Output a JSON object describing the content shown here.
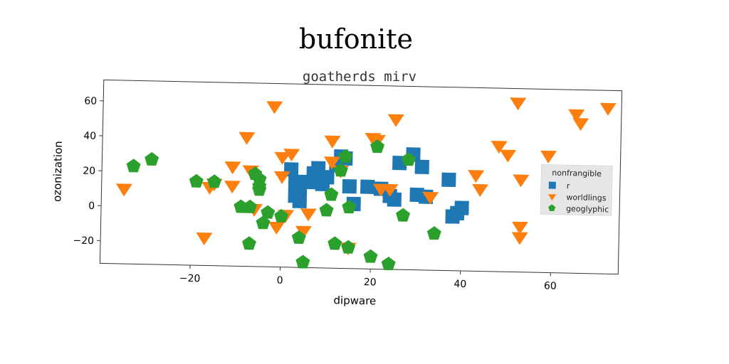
{
  "chart_data": {
    "type": "scatter",
    "title": "bufonite",
    "subtitle": "goatherds mirv",
    "xlabel": "dipware",
    "ylabel": "ozonization",
    "xlim": [
      -40,
      75
    ],
    "ylim": [
      -33,
      72
    ],
    "xticks": [
      -20,
      0,
      20,
      40,
      60
    ],
    "yticks": [
      -20,
      0,
      20,
      40,
      60
    ],
    "grid": false,
    "legend": {
      "title": "nonfrangible",
      "placement": "right"
    },
    "series": [
      {
        "name": "r",
        "marker": "square",
        "color": "#1f77b4",
        "points": [
          [
            2,
            23
          ],
          [
            3,
            16
          ],
          [
            4,
            12
          ],
          [
            3,
            8
          ],
          [
            4,
            5
          ],
          [
            6,
            16
          ],
          [
            7,
            21
          ],
          [
            8,
            24
          ],
          [
            9,
            15
          ],
          [
            10,
            19
          ],
          [
            12,
            26
          ],
          [
            13,
            31
          ],
          [
            14,
            30
          ],
          [
            15,
            14
          ],
          [
            16,
            4
          ],
          [
            19,
            14
          ],
          [
            22,
            13
          ],
          [
            24,
            9
          ],
          [
            25,
            7
          ],
          [
            26,
            28
          ],
          [
            29,
            33
          ],
          [
            30,
            10
          ],
          [
            31,
            26
          ],
          [
            32,
            9
          ],
          [
            37,
            19
          ],
          [
            38,
            -2
          ],
          [
            39,
            0
          ],
          [
            40,
            3
          ]
        ]
      },
      {
        "name": "worldlings",
        "marker": "triangle-down",
        "color": "#ff7f0e",
        "points": [
          [
            -35,
            10
          ],
          [
            -16,
            12
          ],
          [
            -17,
            -17
          ],
          [
            -15,
            14
          ],
          [
            -11,
            24
          ],
          [
            -11,
            13
          ],
          [
            -8,
            41
          ],
          [
            -7,
            22
          ],
          [
            -6,
            0
          ],
          [
            -2,
            59
          ],
          [
            -1,
            -10
          ],
          [
            0,
            30
          ],
          [
            0,
            19
          ],
          [
            2,
            32
          ],
          [
            1,
            -3
          ],
          [
            5,
            -12
          ],
          [
            6,
            -2
          ],
          [
            11,
            40
          ],
          [
            11,
            28
          ],
          [
            13,
            23
          ],
          [
            15,
            -21
          ],
          [
            20,
            42
          ],
          [
            21,
            41
          ],
          [
            22,
            13
          ],
          [
            24,
            13
          ],
          [
            25,
            53
          ],
          [
            33,
            9
          ],
          [
            43,
            22
          ],
          [
            44,
            14
          ],
          [
            48,
            39
          ],
          [
            50,
            34
          ],
          [
            53,
            20
          ],
          [
            52,
            64
          ],
          [
            53,
            -7
          ],
          [
            53,
            -13
          ],
          [
            59,
            34
          ],
          [
            65,
            58
          ],
          [
            66,
            53
          ],
          [
            72,
            62
          ]
        ]
      },
      {
        "name": "geoglyphic",
        "marker": "pentagon",
        "color": "#2ca02c",
        "points": [
          [
            -33,
            23
          ],
          [
            -29,
            27
          ],
          [
            -19,
            15
          ],
          [
            -15,
            15
          ],
          [
            -9,
            1
          ],
          [
            -7,
            1
          ],
          [
            -6,
            20
          ],
          [
            -5,
            17
          ],
          [
            -5,
            13
          ],
          [
            -5,
            11
          ],
          [
            -4,
            -8
          ],
          [
            -3,
            -2
          ],
          [
            -7,
            -20
          ],
          [
            0,
            -4
          ],
          [
            4,
            -16
          ],
          [
            5,
            -30
          ],
          [
            10,
            0
          ],
          [
            11,
            9
          ],
          [
            12,
            -19
          ],
          [
            13,
            23
          ],
          [
            14,
            31
          ],
          [
            15,
            2
          ],
          [
            15,
            -21
          ],
          [
            20,
            -26
          ],
          [
            21,
            37
          ],
          [
            24,
            -30
          ],
          [
            27,
            -2
          ],
          [
            28,
            30
          ],
          [
            34,
            -12
          ]
        ]
      }
    ]
  }
}
